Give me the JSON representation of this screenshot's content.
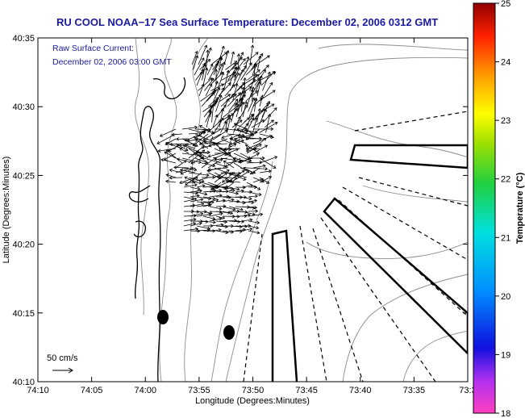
{
  "title": "RU COOL  NOAA−17  Sea Surface Temperature:  December 02, 2006 0312 GMT",
  "info_line1": "Raw Surface Current:",
  "info_line2": "December 02, 2006 03:00 GMT",
  "x_axis_label": "Longitude (Degrees:Minutes)",
  "y_axis_label": "Latitude (Degrees:Minutes)",
  "x_ticks": [
    "74:10",
    "74:05",
    "74:00",
    "73:55",
    "73:50",
    "73:45",
    "73:40",
    "73:35",
    "73:3"
  ],
  "y_ticks": [
    "40:35",
    "40:30",
    "40:25",
    "40:20",
    "40:15",
    "40:10"
  ],
  "colorbar": {
    "label": "Temperature (°C)",
    "ticks": [
      "25",
      "24",
      "23",
      "22",
      "21",
      "20",
      "19",
      "18"
    ],
    "min": 18,
    "max": 25
  },
  "scale_label": "50 cm/s",
  "colors": {
    "title": "#1a1aa0",
    "contour": "#8c8c8c",
    "coast": "#000000",
    "vectors": "#000000"
  }
}
